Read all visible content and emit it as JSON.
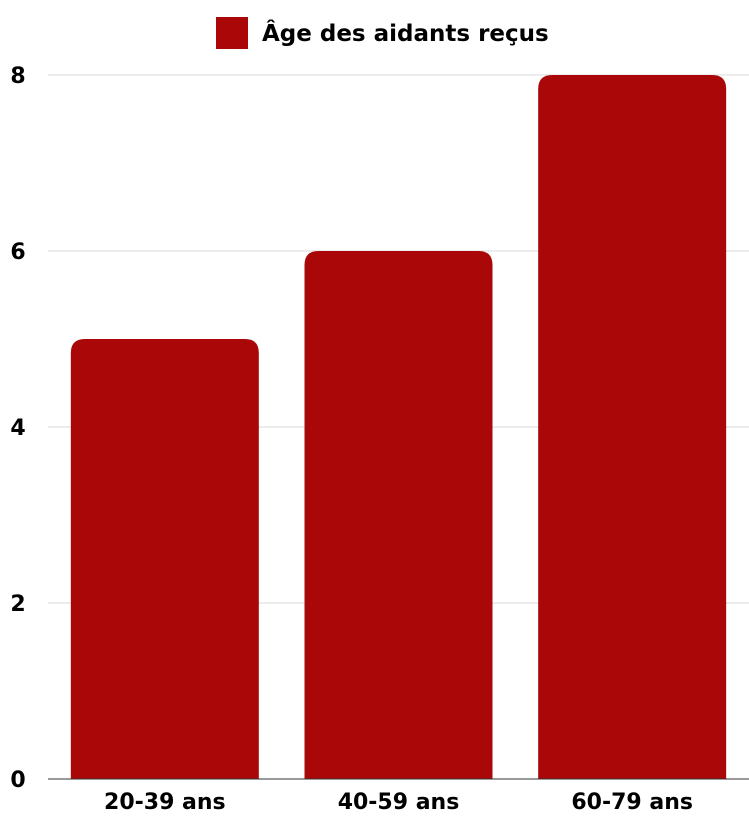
{
  "chart_data": {
    "type": "bar",
    "categories": [
      "20-39 ans",
      "40-59 ans",
      "60-79 ans"
    ],
    "series": [
      {
        "name": "Âge des aidants reçus",
        "values": [
          5,
          6,
          8
        ],
        "color": "#aa0808"
      }
    ],
    "yticks": [
      "0",
      "2",
      "4",
      "6",
      "8"
    ],
    "ylim": [
      0,
      8
    ],
    "grid": true,
    "legend_position": "top-center"
  }
}
